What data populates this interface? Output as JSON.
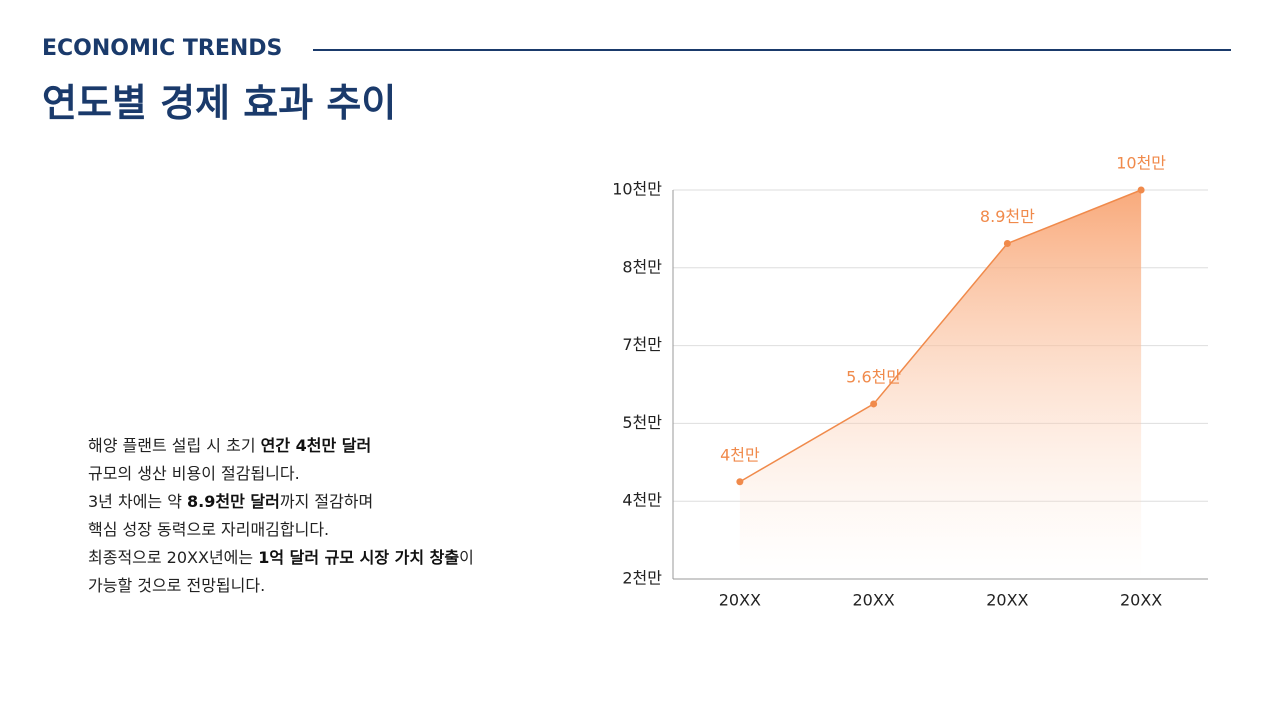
{
  "header": {
    "kicker": "ECONOMIC TRENDS",
    "title": "연도별 경제 효과 추이"
  },
  "description": [
    [
      {
        "text": "해양 플랜트 설립 시 초기 ",
        "bold": false
      },
      {
        "text": "연간 4천만 달러",
        "bold": true
      }
    ],
    [
      {
        "text": "규모의 생산 비용이 절감됩니다.",
        "bold": false
      }
    ],
    [
      {
        "text": "3년 차에는 약 ",
        "bold": false
      },
      {
        "text": "8.9천만 달러",
        "bold": true
      },
      {
        "text": "까지 절감하며",
        "bold": false
      }
    ],
    [
      {
        "text": "핵심 성장 동력으로 자리매김합니다.",
        "bold": false
      }
    ],
    [
      {
        "text": "최종적으로 20XX년에는 ",
        "bold": false
      },
      {
        "text": "1억 달러 규모 시장 가치 창출",
        "bold": true
      },
      {
        "text": "이",
        "bold": false
      }
    ],
    [
      {
        "text": "가능할 것으로 전망됩니다.",
        "bold": false
      }
    ]
  ],
  "chart_data": {
    "type": "line",
    "area": true,
    "color": "#f08a4b",
    "categories": [
      "20XX",
      "20XX",
      "20XX",
      "20XX"
    ],
    "values": [
      4,
      5.6,
      8.9,
      10
    ],
    "value_labels": [
      "4천만",
      "5.6천만",
      "8.9천만",
      "10천만"
    ],
    "ylim": [
      2,
      10
    ],
    "yticks": [
      {
        "value": 2,
        "label": "2천만"
      },
      {
        "value": 3.6,
        "label": "4천만"
      },
      {
        "value": 5.2,
        "label": "5천만"
      },
      {
        "value": 6.8,
        "label": "7천만"
      },
      {
        "value": 8.4,
        "label": "8천만"
      },
      {
        "value": 10,
        "label": "10천만"
      }
    ],
    "grid": true
  }
}
